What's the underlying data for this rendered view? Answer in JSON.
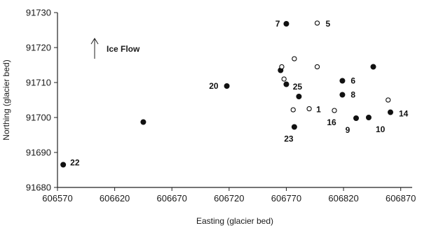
{
  "chart_data": {
    "type": "scatter",
    "title": "",
    "xlabel": "Easting (glacier bed)",
    "ylabel": "Northing (glacier bed)",
    "xlim": [
      606570,
      606880
    ],
    "ylim": [
      91680,
      91730
    ],
    "xticks": [
      "606570",
      "606620",
      "606670",
      "606720",
      "606770",
      "606820",
      "606870"
    ],
    "yticks": [
      "91680",
      "91690",
      "91700",
      "91710",
      "91720",
      "91730"
    ],
    "grid": false,
    "annotation": {
      "text": "Ice Flow",
      "symbol": "↑"
    },
    "series": [
      {
        "marker": "filled-circle",
        "points": [
          {
            "x": 606575,
            "y": 91686.5,
            "label": "22"
          },
          {
            "x": 606645,
            "y": 91698.7,
            "label": ""
          },
          {
            "x": 606718,
            "y": 91709.0,
            "label": "20"
          },
          {
            "x": 606770,
            "y": 91726.8,
            "label": "7"
          },
          {
            "x": 606765,
            "y": 91713.5,
            "label": ""
          },
          {
            "x": 606770,
            "y": 91709.5,
            "label": ""
          },
          {
            "x": 606777,
            "y": 91697.3,
            "label": "23"
          },
          {
            "x": 606781,
            "y": 91706.0,
            "label": "25"
          },
          {
            "x": 606819,
            "y": 91710.5,
            "label": "6"
          },
          {
            "x": 606819,
            "y": 91706.5,
            "label": "8"
          },
          {
            "x": 606831,
            "y": 91699.8,
            "label": "9"
          },
          {
            "x": 606842,
            "y": 91700.0,
            "label": "10"
          },
          {
            "x": 606846,
            "y": 91714.5,
            "label": ""
          },
          {
            "x": 606861,
            "y": 91701.5,
            "label": "14"
          }
        ]
      },
      {
        "marker": "open-circle",
        "points": [
          {
            "x": 606797,
            "y": 91727.0,
            "label": "5"
          },
          {
            "x": 606766,
            "y": 91714.5,
            "label": ""
          },
          {
            "x": 606768,
            "y": 91711.0,
            "label": ""
          },
          {
            "x": 606777,
            "y": 91716.8,
            "label": ""
          },
          {
            "x": 606797,
            "y": 91714.5,
            "label": ""
          },
          {
            "x": 606776,
            "y": 91702.2,
            "label": ""
          },
          {
            "x": 606790,
            "y": 91702.5,
            "label": "1"
          },
          {
            "x": 606812,
            "y": 91702.0,
            "label": "16"
          },
          {
            "x": 606859,
            "y": 91705.0,
            "label": ""
          }
        ]
      }
    ]
  }
}
